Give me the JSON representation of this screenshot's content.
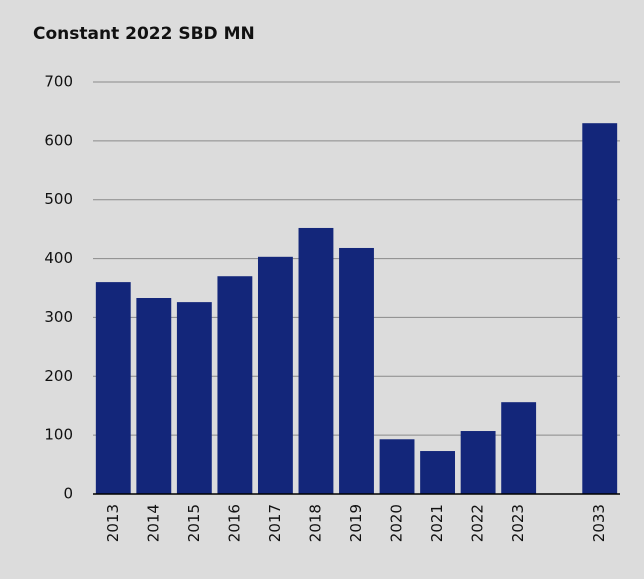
{
  "chart_data": {
    "type": "bar",
    "title": "Constant 2022 SBD MN",
    "categories": [
      "2013",
      "2014",
      "2015",
      "2016",
      "2017",
      "2018",
      "2019",
      "2020",
      "2021",
      "2022",
      "2023",
      null,
      "2033"
    ],
    "values": [
      360,
      333,
      326,
      370,
      403,
      452,
      418,
      93,
      73,
      107,
      156,
      null,
      630
    ],
    "color": "#13267a",
    "ylim": [
      0,
      700
    ],
    "yticks": [
      0,
      100,
      200,
      300,
      400,
      500,
      600,
      700
    ],
    "grid": true
  }
}
